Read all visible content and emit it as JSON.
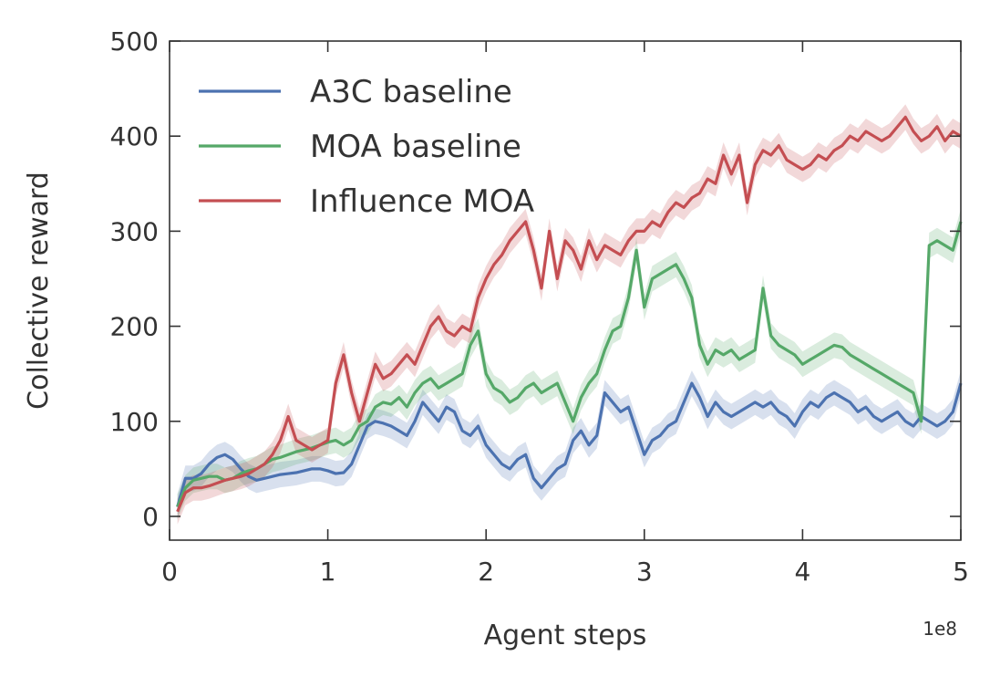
{
  "chart_data": {
    "type": "line",
    "xlabel": "Agent steps",
    "ylabel": "Collective reward",
    "x_offset_label": "1e8",
    "xlim": [
      0,
      5
    ],
    "ylim": [
      -25,
      500
    ],
    "x_ticks": [
      0,
      1,
      2,
      3,
      4,
      5
    ],
    "y_ticks": [
      0,
      100,
      200,
      300,
      400,
      500
    ],
    "grid": false,
    "legend_position": "top-left",
    "series": [
      {
        "name": "A3C baseline",
        "color": "#4c72b0",
        "x": [
          0.05,
          0.1,
          0.15,
          0.2,
          0.25,
          0.3,
          0.35,
          0.4,
          0.45,
          0.5,
          0.55,
          0.6,
          0.65,
          0.7,
          0.75,
          0.8,
          0.85,
          0.9,
          0.95,
          1.0,
          1.05,
          1.1,
          1.15,
          1.2,
          1.25,
          1.3,
          1.35,
          1.4,
          1.45,
          1.5,
          1.55,
          1.6,
          1.65,
          1.7,
          1.75,
          1.8,
          1.85,
          1.9,
          1.95,
          2.0,
          2.05,
          2.1,
          2.15,
          2.2,
          2.25,
          2.3,
          2.35,
          2.4,
          2.45,
          2.5,
          2.55,
          2.6,
          2.65,
          2.7,
          2.75,
          2.8,
          2.85,
          2.9,
          2.95,
          3.0,
          3.05,
          3.1,
          3.15,
          3.2,
          3.25,
          3.3,
          3.35,
          3.4,
          3.45,
          3.5,
          3.55,
          3.6,
          3.65,
          3.7,
          3.75,
          3.8,
          3.85,
          3.9,
          3.95,
          4.0,
          4.05,
          4.1,
          4.15,
          4.2,
          4.25,
          4.3,
          4.35,
          4.4,
          4.45,
          4.5,
          4.55,
          4.6,
          4.65,
          4.7,
          4.75,
          4.8,
          4.85,
          4.9,
          4.95,
          5.0
        ],
        "y": [
          10,
          40,
          40,
          45,
          55,
          62,
          65,
          60,
          50,
          42,
          38,
          40,
          42,
          44,
          45,
          46,
          48,
          50,
          50,
          48,
          45,
          46,
          55,
          75,
          95,
          100,
          98,
          95,
          90,
          85,
          100,
          120,
          110,
          100,
          115,
          110,
          90,
          85,
          95,
          75,
          65,
          55,
          50,
          60,
          65,
          40,
          30,
          40,
          50,
          55,
          80,
          90,
          75,
          85,
          130,
          120,
          110,
          115,
          90,
          65,
          80,
          85,
          95,
          100,
          120,
          140,
          125,
          105,
          120,
          110,
          105,
          110,
          115,
          120,
          115,
          120,
          110,
          105,
          95,
          110,
          120,
          115,
          125,
          130,
          125,
          120,
          110,
          115,
          105,
          100,
          105,
          110,
          100,
          95,
          105,
          100,
          95,
          100,
          110,
          140
        ]
      },
      {
        "name": "MOA baseline",
        "color": "#55a868",
        "x": [
          0.05,
          0.1,
          0.15,
          0.2,
          0.25,
          0.3,
          0.35,
          0.4,
          0.45,
          0.5,
          0.55,
          0.6,
          0.65,
          0.7,
          0.75,
          0.8,
          0.85,
          0.9,
          0.95,
          1.0,
          1.05,
          1.1,
          1.15,
          1.2,
          1.25,
          1.3,
          1.35,
          1.4,
          1.45,
          1.5,
          1.55,
          1.6,
          1.65,
          1.7,
          1.75,
          1.8,
          1.85,
          1.9,
          1.95,
          2.0,
          2.05,
          2.1,
          2.15,
          2.2,
          2.25,
          2.3,
          2.35,
          2.4,
          2.45,
          2.5,
          2.55,
          2.6,
          2.65,
          2.7,
          2.75,
          2.8,
          2.85,
          2.9,
          2.95,
          3.0,
          3.05,
          3.1,
          3.15,
          3.2,
          3.25,
          3.3,
          3.35,
          3.4,
          3.45,
          3.5,
          3.55,
          3.6,
          3.65,
          3.7,
          3.75,
          3.8,
          3.85,
          3.9,
          3.95,
          4.0,
          4.05,
          4.1,
          4.15,
          4.2,
          4.25,
          4.3,
          4.35,
          4.4,
          4.45,
          4.5,
          4.55,
          4.6,
          4.65,
          4.7,
          4.75,
          4.8,
          4.85,
          4.9,
          4.95,
          5.0
        ],
        "y": [
          10,
          30,
          38,
          40,
          42,
          42,
          38,
          40,
          45,
          48,
          50,
          55,
          60,
          62,
          65,
          68,
          70,
          72,
          75,
          78,
          80,
          75,
          80,
          95,
          100,
          115,
          120,
          118,
          125,
          115,
          130,
          140,
          145,
          135,
          140,
          145,
          150,
          180,
          195,
          150,
          135,
          130,
          120,
          125,
          135,
          140,
          130,
          135,
          140,
          120,
          100,
          125,
          140,
          150,
          175,
          195,
          200,
          230,
          280,
          220,
          250,
          255,
          260,
          265,
          250,
          230,
          180,
          160,
          175,
          170,
          175,
          165,
          170,
          175,
          240,
          190,
          180,
          175,
          170,
          160,
          165,
          170,
          175,
          180,
          178,
          170,
          165,
          160,
          155,
          150,
          145,
          140,
          135,
          130,
          100,
          285,
          290,
          285,
          280,
          310
        ]
      },
      {
        "name": "Influence MOA",
        "color": "#c44e52",
        "x": [
          0.05,
          0.1,
          0.15,
          0.2,
          0.25,
          0.3,
          0.35,
          0.4,
          0.45,
          0.5,
          0.55,
          0.6,
          0.65,
          0.7,
          0.75,
          0.8,
          0.85,
          0.9,
          0.95,
          1.0,
          1.05,
          1.1,
          1.15,
          1.2,
          1.25,
          1.3,
          1.35,
          1.4,
          1.45,
          1.5,
          1.55,
          1.6,
          1.65,
          1.7,
          1.75,
          1.8,
          1.85,
          1.9,
          1.95,
          2.0,
          2.05,
          2.1,
          2.15,
          2.2,
          2.25,
          2.3,
          2.35,
          2.4,
          2.45,
          2.5,
          2.55,
          2.6,
          2.65,
          2.7,
          2.75,
          2.8,
          2.85,
          2.9,
          2.95,
          3.0,
          3.05,
          3.1,
          3.15,
          3.2,
          3.25,
          3.3,
          3.35,
          3.4,
          3.45,
          3.5,
          3.55,
          3.6,
          3.65,
          3.7,
          3.75,
          3.8,
          3.85,
          3.9,
          3.95,
          4.0,
          4.05,
          4.1,
          4.15,
          4.2,
          4.25,
          4.3,
          4.35,
          4.4,
          4.45,
          4.5,
          4.55,
          4.6,
          4.65,
          4.7,
          4.75,
          4.8,
          4.85,
          4.9,
          4.95,
          5.0
        ],
        "y": [
          5,
          25,
          30,
          30,
          32,
          35,
          38,
          40,
          42,
          45,
          50,
          55,
          65,
          80,
          105,
          80,
          75,
          70,
          75,
          80,
          140,
          170,
          130,
          100,
          130,
          160,
          145,
          150,
          160,
          170,
          160,
          180,
          200,
          210,
          195,
          190,
          200,
          195,
          230,
          250,
          265,
          275,
          290,
          300,
          310,
          280,
          240,
          300,
          250,
          290,
          280,
          260,
          290,
          270,
          285,
          280,
          275,
          290,
          300,
          300,
          310,
          305,
          320,
          330,
          325,
          335,
          340,
          355,
          350,
          380,
          360,
          380,
          330,
          370,
          385,
          380,
          390,
          375,
          370,
          365,
          370,
          380,
          375,
          385,
          390,
          400,
          395,
          405,
          400,
          395,
          400,
          410,
          420,
          405,
          395,
          400,
          410,
          395,
          405,
          400
        ]
      }
    ]
  }
}
